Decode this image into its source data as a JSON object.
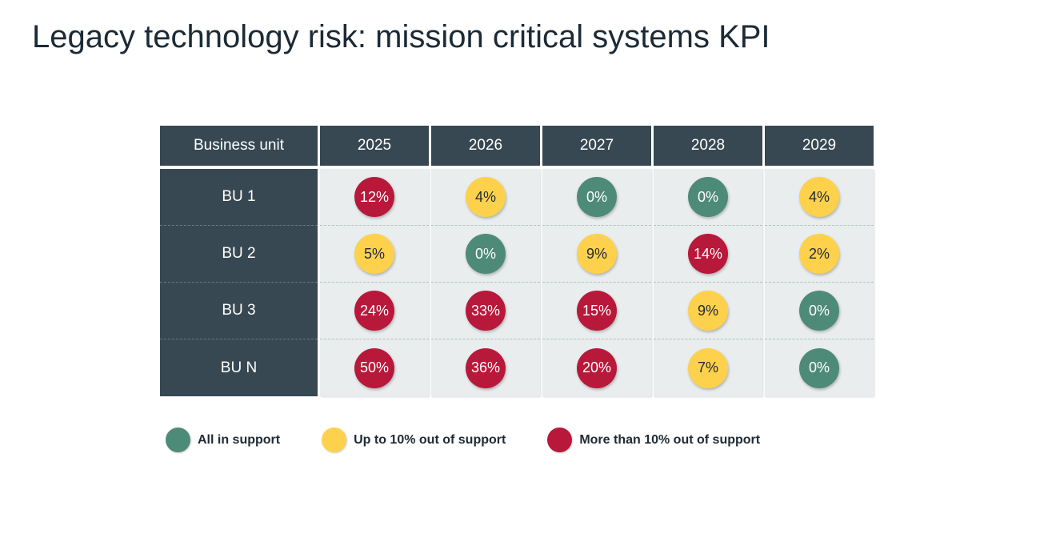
{
  "title": "Legacy technology risk: mission critical systems KPI",
  "colors": {
    "header_bg": "#374852",
    "cell_bg": "#e9edee",
    "green": "#4e8a78",
    "yellow": "#fdd14c",
    "red": "#b8183a"
  },
  "chart_data": {
    "type": "table",
    "title": "Legacy technology risk: mission critical systems KPI",
    "row_header": "Business unit",
    "columns": [
      "2025",
      "2026",
      "2027",
      "2028",
      "2029"
    ],
    "rows": [
      {
        "label": "BU 1",
        "values": [
          "12%",
          "4%",
          "0%",
          "0%",
          "4%"
        ],
        "status": [
          "red",
          "yellow",
          "green",
          "green",
          "yellow"
        ]
      },
      {
        "label": "BU 2",
        "values": [
          "5%",
          "0%",
          "9%",
          "14%",
          "2%"
        ],
        "status": [
          "yellow",
          "green",
          "yellow",
          "red",
          "yellow"
        ]
      },
      {
        "label": "BU 3",
        "values": [
          "24%",
          "33%",
          "15%",
          "9%",
          "0%"
        ],
        "status": [
          "red",
          "red",
          "red",
          "yellow",
          "green"
        ]
      },
      {
        "label": "BU N",
        "values": [
          "50%",
          "36%",
          "20%",
          "7%",
          "0%"
        ],
        "status": [
          "red",
          "red",
          "red",
          "yellow",
          "green"
        ]
      }
    ],
    "legend": [
      {
        "status": "green",
        "label": "All in support"
      },
      {
        "status": "yellow",
        "label": "Up to 10% out of support"
      },
      {
        "status": "red",
        "label": "More than 10% out of support"
      }
    ]
  }
}
